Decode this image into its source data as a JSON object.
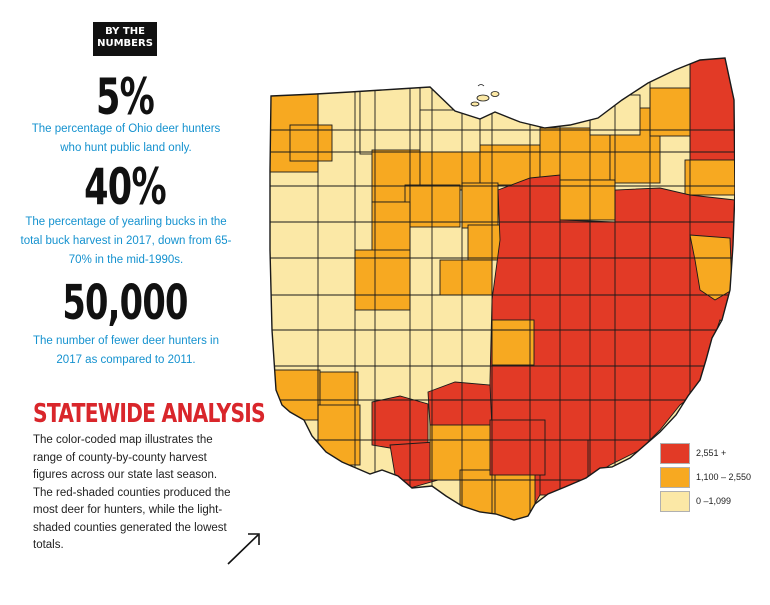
{
  "badge": {
    "text_line1": "BY THE",
    "text_line2": "NUMBERS"
  },
  "stats": [
    {
      "number": "5%",
      "description": "The percentage of Ohio deer hunters who hunt public land only."
    },
    {
      "number": "40%",
      "description": "The percentage of yearling bucks in the total buck harvest in 2017, down from 65-70% in the mid-1990s."
    },
    {
      "number": "50,000",
      "description": "The number of fewer deer hunters in 2017 as compared to 2011."
    }
  ],
  "statewide": {
    "title": "STATEWIDE ANALYSIS",
    "body": "The color-coded map illustrates the range of county-by-county harvest figures across our state last season. The red-shaded counties produced the most deer for hunters, while the light-shaded counties generated the lowest totals."
  },
  "legend": {
    "items": [
      {
        "label": "2,551 +",
        "color": "#e23a26"
      },
      {
        "label": "1,100 – 2,550",
        "color": "#f7a921"
      },
      {
        "label": "0 –1,099",
        "color": "#fbe8a6"
      }
    ]
  },
  "colors": {
    "high": "#e23a26",
    "mid": "#f7a921",
    "low": "#fbe8a6",
    "accent_blue": "#1592cf",
    "title_red": "#d9262b"
  },
  "map": {
    "subject": "Ohio counties deer harvest choropleth",
    "county_categories": {
      "high": "2,551 +",
      "mid": "1,100 – 2,550",
      "low": "0 –1,099"
    }
  }
}
